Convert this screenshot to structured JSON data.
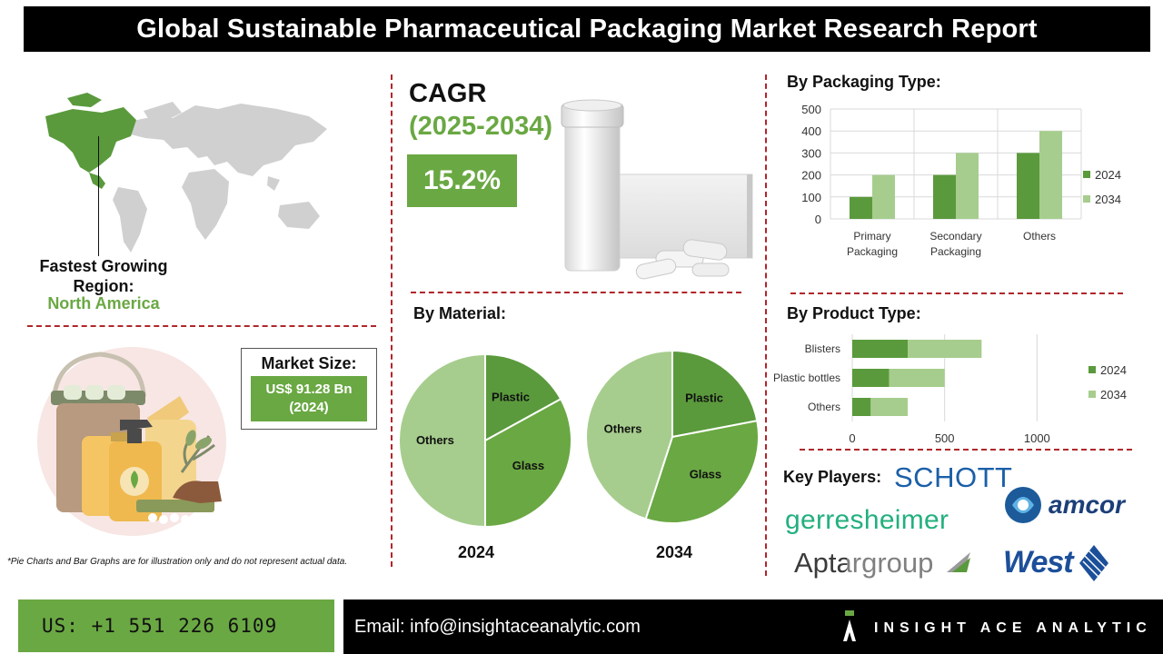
{
  "header": {
    "title": "Global Sustainable Pharmaceutical Packaging Market Research Report"
  },
  "region": {
    "label_line1": "Fastest Growing",
    "label_line2": "Region:",
    "value": "North America"
  },
  "cagr": {
    "label": "CAGR",
    "period": "(2025-2034)",
    "value": "15.2%"
  },
  "market_size": {
    "label": "Market Size:",
    "value": "US$ 91.28 Bn",
    "year": "(2024)"
  },
  "material": {
    "title": "By Material:",
    "year_2024": "2024",
    "year_2034": "2034"
  },
  "packaging": {
    "title": "By Packaging Type:"
  },
  "product": {
    "title": "By Product Type:"
  },
  "key_players": {
    "label": "Key Players:",
    "logos": [
      "SCHOTT",
      "gerresheimer",
      "amcor",
      "Aptargroup",
      "West"
    ]
  },
  "note": "*Pie Charts and Bar Graphs are for illustration only and do not represent actual data.",
  "footer": {
    "phone": "US: +1 551 226 6109",
    "email": "Email: info@insightaceanalytic.com",
    "brand": "INSIGHT ACE ANALYTIC"
  },
  "colors": {
    "dark_green": "#5a9a3c",
    "mid_green": "#6aa843",
    "light_green": "#a6cd8d",
    "accent_red": "#b0262b",
    "map_gray": "#d0d0d0"
  },
  "icons": [
    "world-map-illustration",
    "pill-bottle-illustration",
    "cleaning-products-illustration",
    "brand-logo-icon"
  ],
  "chart_data": [
    {
      "type": "bar",
      "title": "By Packaging Type:",
      "categories": [
        "Primary Packaging",
        "Secondary Packaging",
        "Others"
      ],
      "series": [
        {
          "name": "2024",
          "values": [
            100,
            200,
            300
          ]
        },
        {
          "name": "2034",
          "values": [
            200,
            300,
            400
          ]
        }
      ],
      "ylim": [
        0,
        500
      ],
      "yticks": [
        "0",
        "100",
        "200",
        "300",
        "400",
        "500"
      ],
      "grid": true,
      "legend": "right",
      "colors": [
        "#5a9a3c",
        "#a6cd8d"
      ]
    },
    {
      "type": "bar",
      "orientation": "horizontal-stacked",
      "title": "By Product Type:",
      "categories": [
        "Blisters",
        "Plastic bottles",
        "Others"
      ],
      "series": [
        {
          "name": "2024",
          "values": [
            300,
            200,
            100
          ]
        },
        {
          "name": "2034",
          "values": [
            400,
            300,
            200
          ]
        }
      ],
      "xlim": [
        0,
        1200
      ],
      "xticks": [
        "0",
        "500",
        "1000"
      ],
      "grid": true,
      "legend": "right",
      "colors": [
        "#5a9a3c",
        "#a6cd8d"
      ]
    },
    {
      "type": "pie",
      "title": "2024",
      "labels": [
        "Plastic",
        "Glass",
        "Others"
      ],
      "values": [
        17,
        33,
        50
      ],
      "colors": [
        "#5a9a3c",
        "#6aa843",
        "#a6cd8d"
      ]
    },
    {
      "type": "pie",
      "title": "2034",
      "labels": [
        "Plastic",
        "Glass",
        "Others"
      ],
      "values": [
        22,
        33,
        45
      ],
      "colors": [
        "#5a9a3c",
        "#6aa843",
        "#a6cd8d"
      ]
    }
  ]
}
